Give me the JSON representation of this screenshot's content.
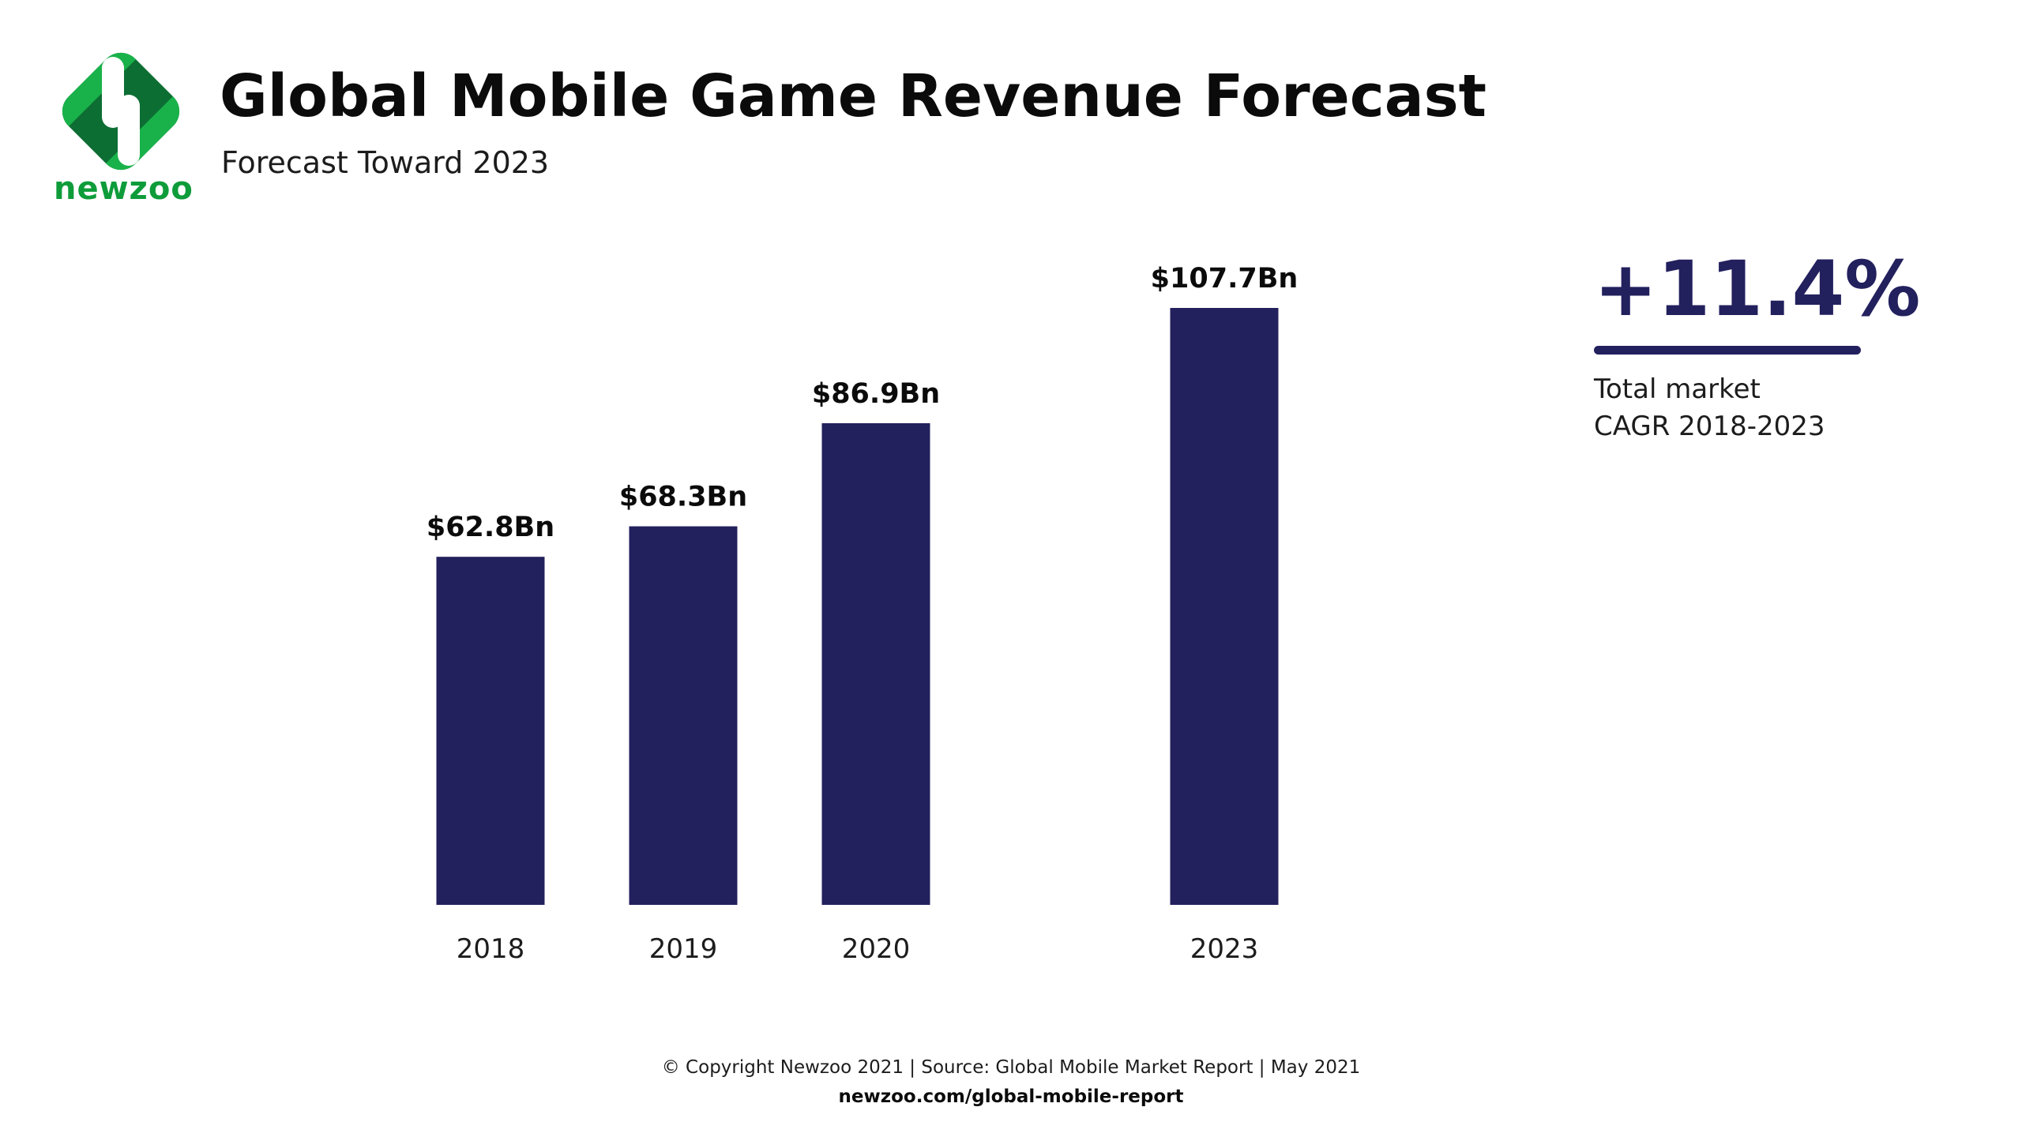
{
  "brand": {
    "name": "newzoo",
    "colors": {
      "green": "#0e9c3a",
      "light_green": "#19b24a",
      "dark_green": "#0d6e34"
    }
  },
  "header": {
    "title": "Global Mobile Game Revenue Forecast",
    "subtitle": "Forecast Toward 2023"
  },
  "chart_data": {
    "type": "bar",
    "title": "Global Mobile Game Revenue Forecast",
    "subtitle": "Forecast Toward 2023",
    "categories": [
      "2018",
      "2019",
      "2020",
      "2023"
    ],
    "values": [
      62.8,
      68.3,
      86.9,
      107.7
    ],
    "data_labels": [
      "$62.8Bn",
      "$68.3Bn",
      "$86.9Bn",
      "$107.7Bn"
    ],
    "xlabel": "",
    "ylabel": "",
    "ylim": [
      0,
      107.7
    ],
    "grid": false,
    "legend": "none",
    "bar_color": "#23205e"
  },
  "callout": {
    "value": "+11.4%",
    "label_line1": "Total market",
    "label_line2": "CAGR 2018-2023",
    "color": "#23205e"
  },
  "footer": {
    "copyright": "© Copyright Newzoo 2021 | Source: Global Mobile Market Report | May 2021",
    "url": "newzoo.com/global-mobile-report"
  }
}
